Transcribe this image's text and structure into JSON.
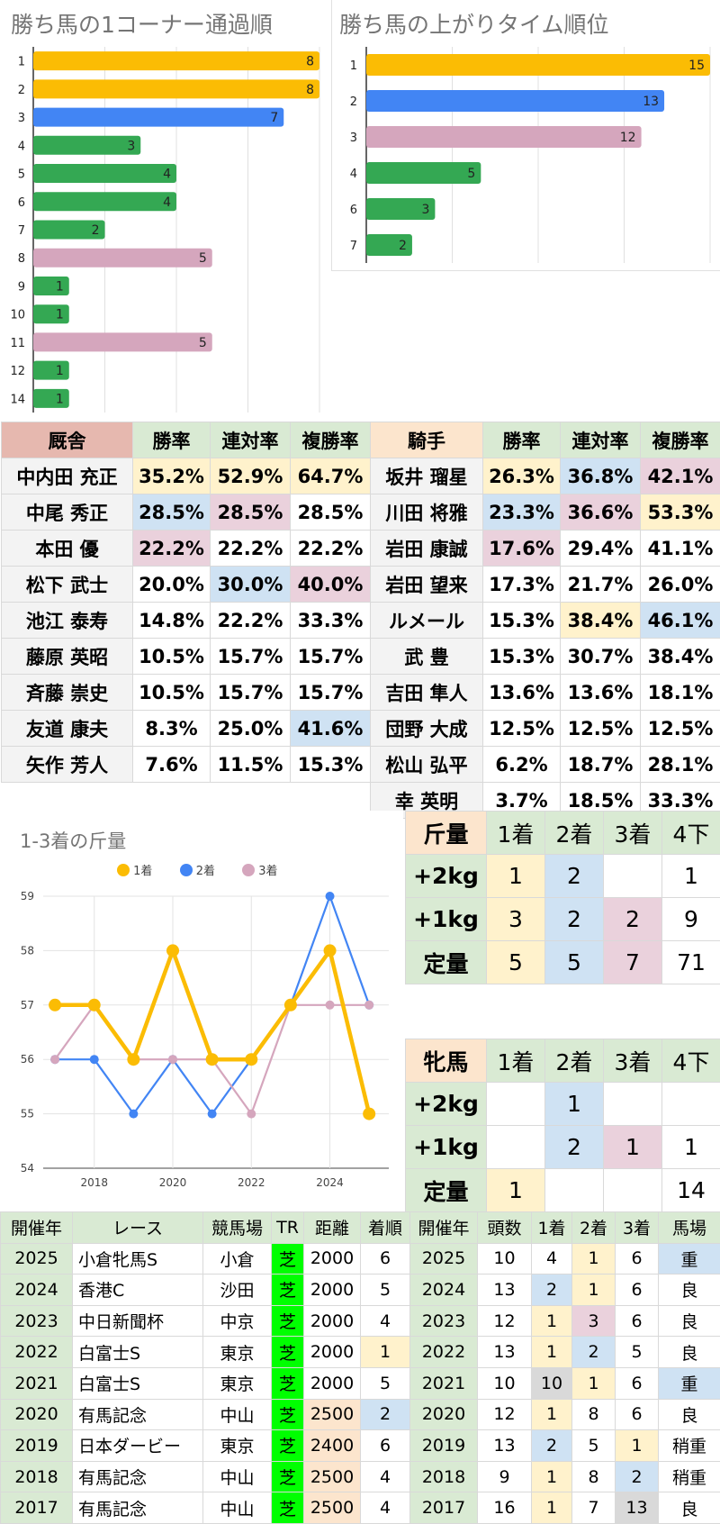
{
  "colors": {
    "yellow": "#fbbc04",
    "blue": "#4285f4",
    "green": "#34a853",
    "pink": "#d5a6bd",
    "cell_yellow": "#fff2cc",
    "cell_blue": "#cfe2f3",
    "cell_pink": "#ead1dc",
    "cell_green": "#d9ead3",
    "cell_salmon": "#e6b8af",
    "cell_peach": "#fce5cd",
    "cell_gray": "#d9d9d9",
    "cell_label": "#f3f3f3",
    "tr_green": "#00ff00"
  },
  "chart_data": [
    {
      "type": "bar",
      "orientation": "horizontal",
      "title": "勝ち馬の1コーナー通過順",
      "categories": [
        "1",
        "2",
        "3",
        "4",
        "5",
        "6",
        "7",
        "8",
        "9",
        "10",
        "11",
        "12",
        "14"
      ],
      "values": [
        8,
        8,
        7,
        3,
        4,
        4,
        2,
        5,
        1,
        1,
        5,
        1,
        1
      ],
      "bar_colors": [
        "yellow",
        "yellow",
        "blue",
        "green",
        "green",
        "green",
        "green",
        "pink",
        "green",
        "green",
        "pink",
        "green",
        "green"
      ],
      "xlim": [
        0,
        8
      ],
      "grid": true
    },
    {
      "type": "bar",
      "orientation": "horizontal",
      "title": "勝ち馬の上がりタイム順位",
      "categories": [
        "1",
        "2",
        "3",
        "4",
        "6",
        "7"
      ],
      "values": [
        15,
        13,
        12,
        5,
        3,
        2
      ],
      "bar_colors": [
        "yellow",
        "blue",
        "pink",
        "green",
        "green",
        "green"
      ],
      "xlim": [
        0,
        15
      ],
      "grid": true
    },
    {
      "type": "line",
      "title": "1-3着の斤量",
      "x": [
        2017,
        2018,
        2019,
        2020,
        2021,
        2022,
        2023,
        2024,
        2025
      ],
      "x_ticks": [
        2018,
        2020,
        2022,
        2024
      ],
      "ylim": [
        54,
        59
      ],
      "y_ticks": [
        54,
        55,
        56,
        57,
        58,
        59
      ],
      "legend_position": "top",
      "grid": true,
      "series": [
        {
          "name": "1着",
          "color": "yellow",
          "values": [
            57,
            57,
            56,
            58,
            56,
            56,
            57,
            58,
            55
          ]
        },
        {
          "name": "2着",
          "color": "blue",
          "values": [
            56,
            56,
            55,
            56,
            55,
            56,
            57,
            59,
            57
          ]
        },
        {
          "name": "3着",
          "color": "pink",
          "values": [
            56,
            57,
            56,
            56,
            56,
            55,
            57,
            57,
            57
          ]
        }
      ]
    }
  ],
  "stable_table": {
    "headers": [
      "厩舎",
      "勝率",
      "連対率",
      "複勝率"
    ],
    "rows": [
      {
        "name": "中内田 充正",
        "cells": [
          "35.2%",
          "52.9%",
          "64.7%"
        ],
        "bg": [
          "cell_yellow",
          "cell_yellow",
          "cell_yellow"
        ]
      },
      {
        "name": "中尾 秀正",
        "cells": [
          "28.5%",
          "28.5%",
          "28.5%"
        ],
        "bg": [
          "cell_blue",
          "cell_pink",
          ""
        ]
      },
      {
        "name": "本田 優",
        "cells": [
          "22.2%",
          "22.2%",
          "22.2%"
        ],
        "bg": [
          "cell_pink",
          "",
          ""
        ]
      },
      {
        "name": "松下 武士",
        "cells": [
          "20.0%",
          "30.0%",
          "40.0%"
        ],
        "bg": [
          "",
          "cell_blue",
          "cell_pink"
        ]
      },
      {
        "name": "池江 泰寿",
        "cells": [
          "14.8%",
          "22.2%",
          "33.3%"
        ],
        "bg": [
          "",
          "",
          ""
        ]
      },
      {
        "name": "藤原 英昭",
        "cells": [
          "10.5%",
          "15.7%",
          "15.7%"
        ],
        "bg": [
          "",
          "",
          ""
        ]
      },
      {
        "name": "斉藤 崇史",
        "cells": [
          "10.5%",
          "15.7%",
          "15.7%"
        ],
        "bg": [
          "",
          "",
          ""
        ]
      },
      {
        "name": "友道 康夫",
        "cells": [
          "8.3%",
          "25.0%",
          "41.6%"
        ],
        "bg": [
          "",
          "",
          "cell_blue"
        ]
      },
      {
        "name": "矢作 芳人",
        "cells": [
          "7.6%",
          "11.5%",
          "15.3%"
        ],
        "bg": [
          "",
          "",
          ""
        ]
      }
    ]
  },
  "jockey_table": {
    "headers": [
      "騎手",
      "勝率",
      "連対率",
      "複勝率"
    ],
    "rows": [
      {
        "name": "坂井 瑠星",
        "cells": [
          "26.3%",
          "36.8%",
          "42.1%"
        ],
        "bg": [
          "cell_yellow",
          "cell_blue",
          "cell_pink"
        ]
      },
      {
        "name": "川田 将雅",
        "cells": [
          "23.3%",
          "36.6%",
          "53.3%"
        ],
        "bg": [
          "cell_blue",
          "cell_pink",
          "cell_yellow"
        ]
      },
      {
        "name": "岩田 康誠",
        "cells": [
          "17.6%",
          "29.4%",
          "41.1%"
        ],
        "bg": [
          "cell_pink",
          "",
          ""
        ]
      },
      {
        "name": "岩田 望来",
        "cells": [
          "17.3%",
          "21.7%",
          "26.0%"
        ],
        "bg": [
          "",
          "",
          ""
        ]
      },
      {
        "name": "ルメール",
        "cells": [
          "15.3%",
          "38.4%",
          "46.1%"
        ],
        "bg": [
          "",
          "cell_yellow",
          "cell_blue"
        ]
      },
      {
        "name": "武 豊",
        "cells": [
          "15.3%",
          "30.7%",
          "38.4%"
        ],
        "bg": [
          "",
          "",
          ""
        ]
      },
      {
        "name": "吉田 隼人",
        "cells": [
          "13.6%",
          "13.6%",
          "18.1%"
        ],
        "bg": [
          "",
          "",
          ""
        ]
      },
      {
        "name": "団野 大成",
        "cells": [
          "12.5%",
          "12.5%",
          "12.5%"
        ],
        "bg": [
          "",
          "",
          ""
        ]
      },
      {
        "name": "松山 弘平",
        "cells": [
          "6.2%",
          "18.7%",
          "28.1%"
        ],
        "bg": [
          "",
          "",
          ""
        ]
      },
      {
        "name": "幸 英明",
        "cells": [
          "3.7%",
          "18.5%",
          "33.3%"
        ],
        "bg": [
          "",
          "",
          ""
        ]
      }
    ]
  },
  "weight_table": {
    "headers": [
      "斤量",
      "1着",
      "2着",
      "3着",
      "4下"
    ],
    "rows": [
      {
        "label": "+2kg",
        "cells": [
          "1",
          "2",
          "",
          "1"
        ],
        "bg": [
          "cell_yellow",
          "cell_blue",
          "",
          ""
        ]
      },
      {
        "label": "+1kg",
        "cells": [
          "3",
          "2",
          "2",
          "9"
        ],
        "bg": [
          "cell_yellow",
          "cell_blue",
          "cell_pink",
          ""
        ]
      },
      {
        "label": "定量",
        "cells": [
          "5",
          "5",
          "7",
          "71"
        ],
        "bg": [
          "cell_yellow",
          "cell_blue",
          "cell_pink",
          ""
        ]
      }
    ]
  },
  "mare_table": {
    "headers": [
      "牝馬",
      "1着",
      "2着",
      "3着",
      "4下"
    ],
    "rows": [
      {
        "label": "+2kg",
        "cells": [
          "",
          "1",
          "",
          ""
        ],
        "bg": [
          "",
          "cell_blue",
          "",
          ""
        ]
      },
      {
        "label": "+1kg",
        "cells": [
          "",
          "2",
          "1",
          "1"
        ],
        "bg": [
          "",
          "cell_blue",
          "cell_pink",
          ""
        ]
      },
      {
        "label": "定量",
        "cells": [
          "1",
          "",
          "",
          "14"
        ],
        "bg": [
          "cell_yellow",
          "",
          "",
          ""
        ]
      }
    ]
  },
  "history_table": {
    "headers": [
      "開催年",
      "レース",
      "競馬場",
      "TR",
      "距離",
      "着順",
      "開催年",
      "頭数",
      "1着",
      "2着",
      "3着",
      "馬場"
    ],
    "rows": [
      {
        "cells": [
          "2025",
          "小倉牝馬S",
          "小倉",
          "芝",
          "2000",
          "6",
          "2025",
          "10",
          "4",
          "1",
          "6",
          "重"
        ],
        "bg": [
          "",
          "",
          "",
          "",
          "",
          "",
          "",
          "",
          "",
          "cell_yellow",
          "",
          "cell_blue"
        ]
      },
      {
        "cells": [
          "2024",
          "香港C",
          "沙田",
          "芝",
          "2000",
          "5",
          "2024",
          "13",
          "2",
          "1",
          "6",
          "良"
        ],
        "bg": [
          "",
          "",
          "",
          "",
          "",
          "",
          "",
          "",
          "cell_blue",
          "cell_yellow",
          "",
          ""
        ]
      },
      {
        "cells": [
          "2023",
          "中日新聞杯",
          "中京",
          "芝",
          "2000",
          "4",
          "2023",
          "12",
          "1",
          "3",
          "6",
          "良"
        ],
        "bg": [
          "",
          "",
          "",
          "",
          "",
          "",
          "",
          "",
          "cell_yellow",
          "cell_pink",
          "",
          ""
        ]
      },
      {
        "cells": [
          "2022",
          "白富士S",
          "東京",
          "芝",
          "2000",
          "1",
          "2022",
          "13",
          "1",
          "2",
          "5",
          "良"
        ],
        "bg": [
          "",
          "",
          "",
          "",
          "",
          "cell_yellow",
          "",
          "",
          "cell_yellow",
          "cell_blue",
          "",
          ""
        ]
      },
      {
        "cells": [
          "2021",
          "白富士S",
          "東京",
          "芝",
          "2000",
          "5",
          "2021",
          "10",
          "10",
          "1",
          "6",
          "重"
        ],
        "bg": [
          "",
          "",
          "",
          "",
          "",
          "",
          "",
          "",
          "cell_gray",
          "cell_yellow",
          "",
          "cell_blue"
        ]
      },
      {
        "cells": [
          "2020",
          "有馬記念",
          "中山",
          "芝",
          "2500",
          "2",
          "2020",
          "12",
          "1",
          "8",
          "6",
          "良"
        ],
        "bg": [
          "",
          "",
          "",
          "",
          "cell_peach",
          "cell_blue",
          "",
          "",
          "cell_yellow",
          "",
          "",
          ""
        ]
      },
      {
        "cells": [
          "2019",
          "日本ダービー",
          "東京",
          "芝",
          "2400",
          "6",
          "2019",
          "13",
          "2",
          "5",
          "1",
          "稍重"
        ],
        "bg": [
          "",
          "",
          "",
          "",
          "cell_peach",
          "",
          "",
          "",
          "cell_blue",
          "",
          "cell_yellow",
          ""
        ]
      },
      {
        "cells": [
          "2018",
          "有馬記念",
          "中山",
          "芝",
          "2500",
          "4",
          "2018",
          "9",
          "1",
          "8",
          "2",
          "稍重"
        ],
        "bg": [
          "",
          "",
          "",
          "",
          "cell_peach",
          "",
          "",
          "",
          "cell_yellow",
          "",
          "cell_blue",
          ""
        ]
      },
      {
        "cells": [
          "2017",
          "有馬記念",
          "中山",
          "芝",
          "2500",
          "4",
          "2017",
          "16",
          "1",
          "7",
          "13",
          "良"
        ],
        "bg": [
          "",
          "",
          "",
          "",
          "cell_peach",
          "",
          "",
          "",
          "cell_yellow",
          "",
          "cell_gray",
          ""
        ]
      }
    ]
  }
}
